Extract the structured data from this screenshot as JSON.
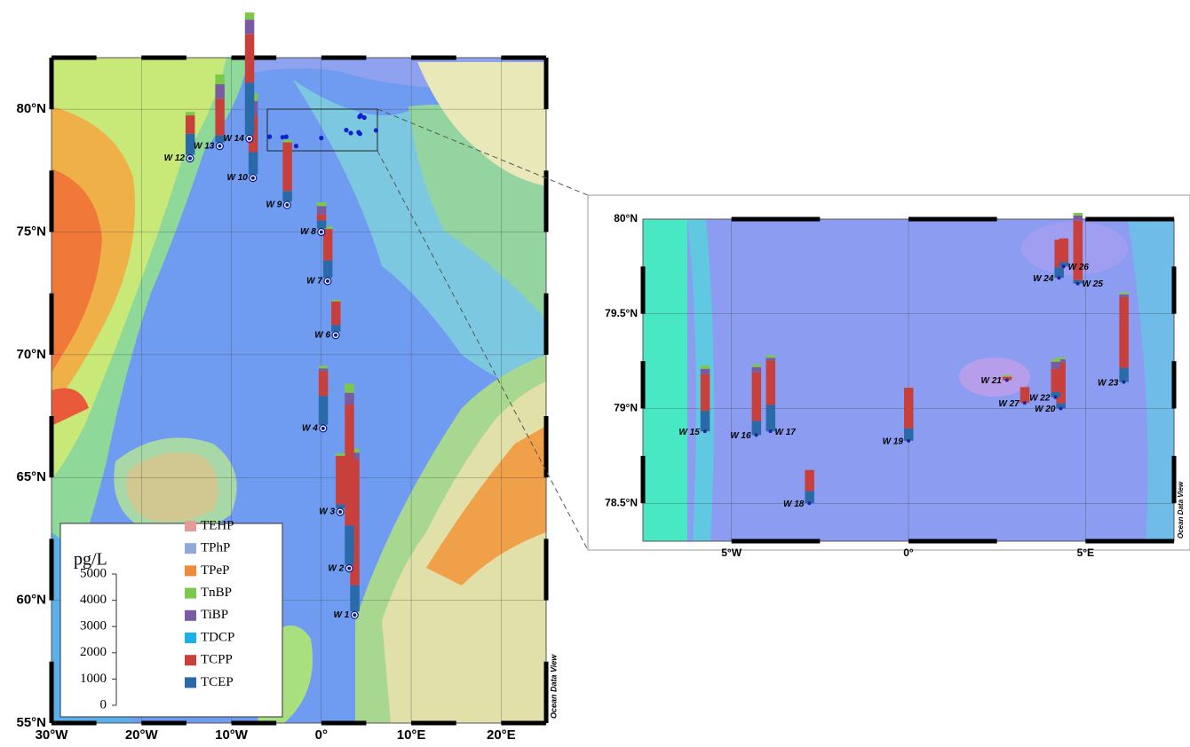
{
  "main_map": {
    "lon_range": [
      -30,
      25
    ],
    "lat_range": [
      55,
      82.1
    ],
    "lon_ticks": [
      {
        "value": -30,
        "label": "30°W"
      },
      {
        "value": -20,
        "label": "20°W"
      },
      {
        "value": -10,
        "label": "10°W"
      },
      {
        "value": 0,
        "label": "0°"
      },
      {
        "value": 10,
        "label": "10°E"
      },
      {
        "value": 20,
        "label": "20°E"
      }
    ],
    "lat_ticks": [
      {
        "value": 55,
        "label": "55°N"
      },
      {
        "value": 60,
        "label": "60°N"
      },
      {
        "value": 65,
        "label": "65°N"
      },
      {
        "value": 70,
        "label": "70°N"
      },
      {
        "value": 75,
        "label": "75°N"
      },
      {
        "value": 80,
        "label": "80°N"
      }
    ],
    "watermark": "Ocean Data View",
    "stations": [
      {
        "label": "W 1",
        "lon": 3.7,
        "lat": 59.4,
        "values": [
          0,
          0,
          0,
          150,
          250,
          0,
          4800,
          1000
        ]
      },
      {
        "label": "W 2",
        "lon": 3.1,
        "lat": 61.3,
        "values": [
          0,
          0,
          0,
          350,
          450,
          0,
          4600,
          1500
        ]
      },
      {
        "label": "W 3",
        "lon": 2.1,
        "lat": 63.6,
        "values": [
          0,
          0,
          0,
          100,
          0,
          0,
          1850,
          150
        ]
      },
      {
        "label": "W 4",
        "lon": 0.2,
        "lat": 67.0,
        "values": [
          0,
          0,
          0,
          100,
          100,
          0,
          950,
          1100
        ]
      },
      {
        "label": "W 6",
        "lon": 1.6,
        "lat": 70.8,
        "values": [
          0,
          0,
          0,
          60,
          0,
          0,
          900,
          250
        ]
      },
      {
        "label": "W 7",
        "lon": 0.7,
        "lat": 73.0,
        "values": [
          0,
          0,
          0,
          100,
          0,
          0,
          1200,
          650
        ]
      },
      {
        "label": "W 8",
        "lon": 0.0,
        "lat": 75.0,
        "values": [
          0,
          0,
          0,
          150,
          300,
          0,
          250,
          300
        ]
      },
      {
        "label": "W 9",
        "lon": -3.8,
        "lat": 76.1,
        "values": [
          0,
          0,
          0,
          100,
          0,
          0,
          1850,
          400
        ]
      },
      {
        "label": "W 10",
        "lon": -7.6,
        "lat": 77.2,
        "values": [
          0,
          0,
          0,
          300,
          550,
          0,
          1400,
          850
        ]
      },
      {
        "label": "W 12",
        "lon": -14.6,
        "lat": 78.0,
        "values": [
          0,
          0,
          0,
          130,
          0,
          0,
          700,
          800
        ]
      },
      {
        "label": "W 13",
        "lon": -11.3,
        "lat": 78.5,
        "values": [
          0,
          0,
          0,
          370,
          550,
          0,
          1400,
          270
        ]
      },
      {
        "label": "W 14",
        "lon": -8.0,
        "lat": 78.8,
        "values": [
          0,
          0,
          0,
          270,
          550,
          0,
          1850,
          2000
        ]
      }
    ]
  },
  "inset_map": {
    "lon_range": [
      -7.5,
      7.5
    ],
    "lat_range": [
      78.3,
      80
    ],
    "lon_ticks": [
      {
        "value": -5,
        "label": "5°W"
      },
      {
        "value": 0,
        "label": "0°"
      },
      {
        "value": 5,
        "label": "5°E"
      }
    ],
    "lat_ticks": [
      {
        "value": 78.5,
        "label": "78.5°N"
      },
      {
        "value": 79,
        "label": "79°N"
      },
      {
        "value": 79.5,
        "label": "79.5°N"
      },
      {
        "value": 80,
        "label": "80°N"
      }
    ],
    "watermark": "Ocean Data View",
    "stations": [
      {
        "label": "W 15",
        "lon": -5.75,
        "lat": 78.88,
        "values": [
          0,
          0,
          0,
          130,
          200,
          0,
          1400,
          780
        ]
      },
      {
        "label": "W 16",
        "lon": -4.3,
        "lat": 78.86,
        "values": [
          0,
          0,
          0,
          100,
          200,
          0,
          1850,
          540
        ]
      },
      {
        "label": "W 17",
        "lon": -3.9,
        "lat": 78.88,
        "values": [
          0,
          0,
          0,
          100,
          100,
          0,
          1700,
          1000
        ]
      },
      {
        "label": "W 18",
        "lon": -2.8,
        "lat": 78.5,
        "values": [
          0,
          0,
          0,
          0,
          0,
          0,
          800,
          470
        ]
      },
      {
        "label": "W 19",
        "lon": 0.0,
        "lat": 78.83,
        "values": [
          0,
          0,
          0,
          0,
          0,
          0,
          1550,
          470
        ]
      },
      {
        "label": "W 20",
        "lon": 4.3,
        "lat": 79.0,
        "values": [
          0,
          0,
          0,
          70,
          130,
          0,
          1550,
          200
        ]
      },
      {
        "label": "W 21",
        "lon": 2.78,
        "lat": 79.15,
        "values": [
          0,
          0,
          0,
          70,
          0,
          0,
          130,
          0
        ]
      },
      {
        "label": "W 22",
        "lon": 4.15,
        "lat": 79.06,
        "values": [
          0,
          0,
          0,
          100,
          270,
          0,
          880,
          200
        ]
      },
      {
        "label": "W 23",
        "lon": 6.08,
        "lat": 79.14,
        "values": [
          0,
          0,
          0,
          70,
          100,
          0,
          2700,
          540
        ]
      },
      {
        "label": "W 24",
        "lon": 4.25,
        "lat": 79.69,
        "values": [
          0,
          0,
          0,
          0,
          0,
          0,
          1050,
          400
        ]
      },
      {
        "label": "W 25",
        "lon": 4.78,
        "lat": 79.66,
        "values": [
          0,
          0,
          0,
          100,
          200,
          0,
          2260,
          130
        ]
      },
      {
        "label": "W 26",
        "lon": 4.38,
        "lat": 79.75,
        "values": [
          0,
          0,
          0,
          0,
          0,
          0,
          900,
          170
        ]
      },
      {
        "label": "W 27",
        "lon": 3.28,
        "lat": 79.03,
        "values": [
          0,
          0,
          0,
          0,
          0,
          0,
          600,
          0
        ]
      }
    ]
  },
  "legend": {
    "unit": "pg/L",
    "scale_ticks": [
      0,
      1000,
      2000,
      3000,
      4000,
      5000
    ],
    "compounds": [
      {
        "name": "TEHP",
        "color": "#e89a9a"
      },
      {
        "name": "TPhP",
        "color": "#8fa8d8"
      },
      {
        "name": "TPeP",
        "color": "#f08a3a"
      },
      {
        "name": "TnBP",
        "color": "#7cc84a"
      },
      {
        "name": "TiBP",
        "color": "#7a5aa0"
      },
      {
        "name": "TDCP",
        "color": "#1ab0e8"
      },
      {
        "name": "TCPP",
        "color": "#c8403c"
      },
      {
        "name": "TCEP",
        "color": "#2a6aa8"
      }
    ]
  }
}
